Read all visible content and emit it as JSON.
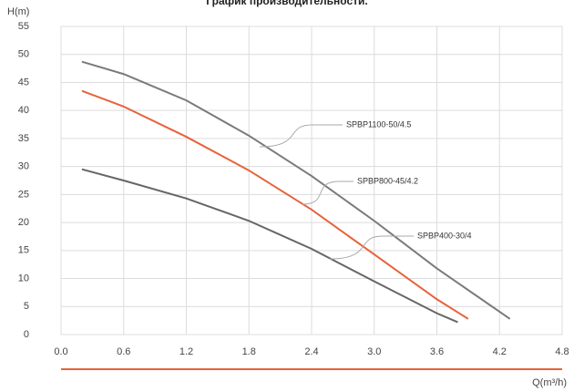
{
  "chart_data": {
    "type": "line",
    "title": "График производительности.",
    "xlabel": "Q(m³/h)",
    "ylabel": "H(m)",
    "xlim": [
      0,
      4.8
    ],
    "ylim": [
      0,
      55
    ],
    "xticks": [
      {
        "value": 0,
        "label": "0.0"
      },
      0.6,
      1.2,
      1.8,
      2.4,
      {
        "value": 3,
        "label": "3.0"
      },
      3.6,
      4.2,
      4.8
    ],
    "yticks": [
      0,
      5,
      10,
      15,
      20,
      25,
      30,
      35,
      40,
      45,
      50,
      55
    ],
    "grid": true,
    "series": [
      {
        "name": "SPBP1100-50/4.5",
        "color": "#7a7a7a",
        "x": [
          0.2,
          0.6,
          1.2,
          1.8,
          2.4,
          3.0,
          3.6,
          4.3
        ],
        "values": [
          48.7,
          46.5,
          41.8,
          35.5,
          28.3,
          20.3,
          11.8,
          2.8
        ]
      },
      {
        "name": "SPBP800-45/4.2",
        "color": "#e8623a",
        "x": [
          0.2,
          0.6,
          1.2,
          1.8,
          2.4,
          3.0,
          3.6,
          3.9
        ],
        "values": [
          43.5,
          40.7,
          35.3,
          29.3,
          22.3,
          14.3,
          6.3,
          2.8
        ]
      },
      {
        "name": "SPBP400-30/4",
        "color": "#666666",
        "x": [
          0.2,
          0.6,
          1.2,
          1.8,
          2.4,
          3.0,
          3.6,
          3.8
        ],
        "values": [
          29.5,
          27.5,
          24.3,
          20.3,
          15.3,
          9.5,
          3.8,
          2.2
        ]
      }
    ]
  }
}
